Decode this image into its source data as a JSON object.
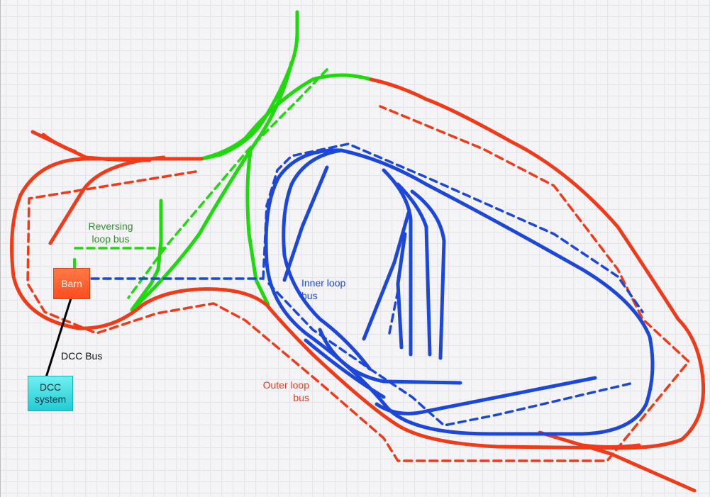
{
  "colors": {
    "outer": "#ee3b1a",
    "inner": "#1c47d8",
    "reversing": "#1fd80e",
    "dcc_wire": "#000000",
    "barn_fill": "#ff5a2a",
    "dcc_fill": "#30d3dc"
  },
  "labels": {
    "reversing_bus": "Reversing\nloop bus",
    "inner_bus": "Inner loop\nbus",
    "dcc_bus": "DCC Bus",
    "outer_bus": "Outer loop\nbus"
  },
  "nodes": {
    "barn": "Barn",
    "dcc_system": "DCC\nsystem"
  }
}
